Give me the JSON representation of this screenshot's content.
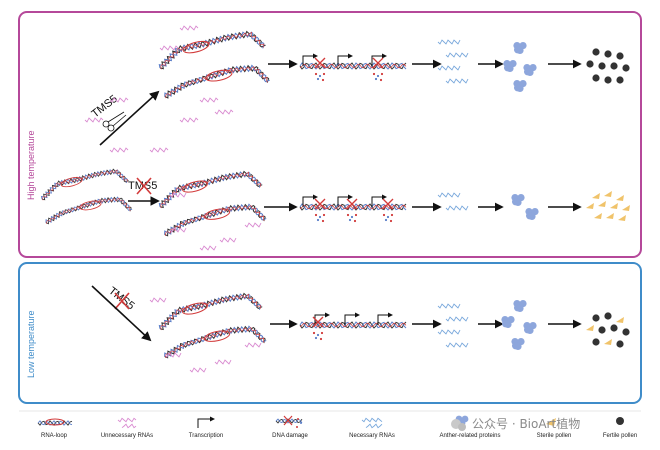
{
  "panels": {
    "high": {
      "label": "High temperature",
      "color": "#b5489a"
    },
    "low": {
      "label": "Low temperature",
      "color": "#3f8cc9"
    }
  },
  "gene": "TMS5",
  "legend": [
    {
      "label": "RNA-loop",
      "icon": "rna-loop-icon"
    },
    {
      "label": "Unnecessary RNAs",
      "icon": "unnecessary-rna-icon"
    },
    {
      "label": "Transcription",
      "icon": "transcription-arrow-icon"
    },
    {
      "label": "DNA damage",
      "icon": "dna-damage-icon"
    },
    {
      "label": "Necessary RNAs",
      "icon": "necessary-rna-icon"
    },
    {
      "label": "Anther-related proteins",
      "icon": "protein-icon"
    },
    {
      "label": "Sterile pollen",
      "icon": "sterile-pollen-icon"
    },
    {
      "label": "Fertile pollen",
      "icon": "fertile-pollen-icon"
    }
  ],
  "watermark": "公众号 · BioArt植物",
  "colors": {
    "dna_blue": "#5a7ec8",
    "dna_red": "#d23a3a",
    "dna_dark": "#333333",
    "unnecessary_rna": "#d98ad0",
    "necessary_rna": "#79a8dc",
    "protein": "#8da6dc",
    "sterile_pollen": "#f0c36a",
    "fertile_pollen": "#333333"
  }
}
